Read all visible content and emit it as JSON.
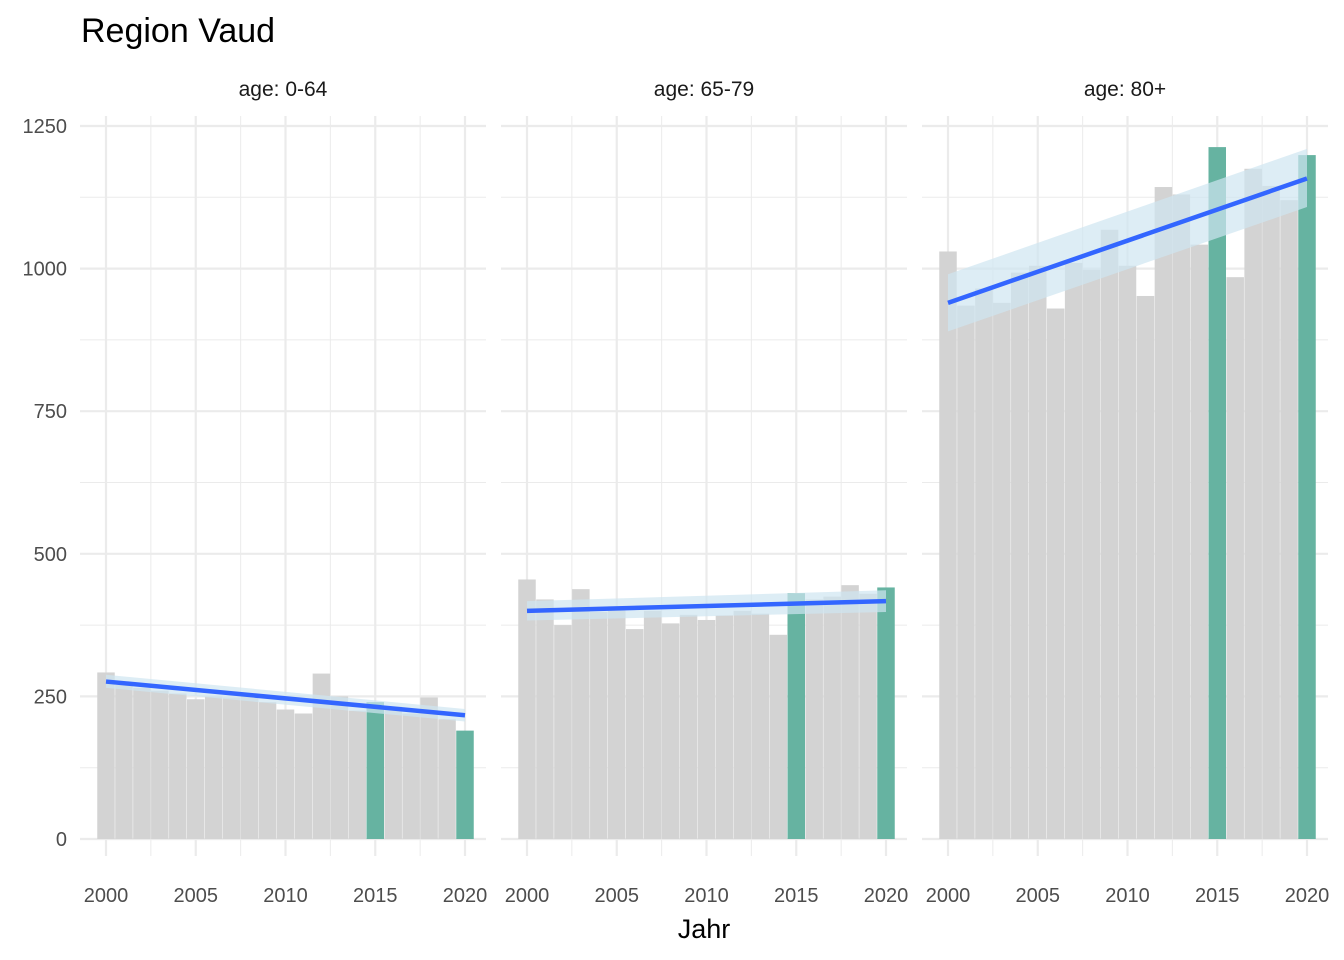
{
  "chart_data": {
    "type": "bar",
    "title": "Region Vaud",
    "xlabel": "Jahr",
    "ylabel": "",
    "ylim": [
      0,
      1250
    ],
    "xlim": [
      2000,
      2020
    ],
    "y_ticks": [
      0,
      250,
      500,
      750,
      1000,
      1250
    ],
    "x_ticks": [
      2000,
      2005,
      2010,
      2015,
      2020
    ],
    "grid": true,
    "colors": {
      "bar": "#d3d3d3",
      "highlight_bar": "#66b3a1",
      "trend_line": "#3366ff",
      "confidence_band": "#cfe6f1",
      "grid": "#ebebeb"
    },
    "highlight_years": [
      2015,
      2020
    ],
    "panels": [
      {
        "label": "age: 0-64",
        "years": [
          2000,
          2001,
          2002,
          2003,
          2004,
          2005,
          2006,
          2007,
          2008,
          2009,
          2010,
          2011,
          2012,
          2013,
          2014,
          2015,
          2016,
          2017,
          2018,
          2019,
          2020
        ],
        "values": [
          292,
          270,
          265,
          260,
          255,
          245,
          250,
          248,
          250,
          240,
          227,
          220,
          290,
          250,
          225,
          240,
          232,
          220,
          248,
          210,
          190
        ],
        "trend": {
          "start": [
            2000,
            276
          ],
          "end": [
            2020,
            217
          ],
          "ci_start": [
            265,
            288
          ],
          "ci_end": [
            206,
            228
          ]
        }
      },
      {
        "label": "age: 65-79",
        "years": [
          2000,
          2001,
          2002,
          2003,
          2004,
          2005,
          2006,
          2007,
          2008,
          2009,
          2010,
          2011,
          2012,
          2013,
          2014,
          2015,
          2016,
          2017,
          2018,
          2019,
          2020
        ],
        "values": [
          455,
          420,
          375,
          438,
          398,
          408,
          368,
          400,
          378,
          393,
          384,
          392,
          400,
          395,
          358,
          431,
          420,
          425,
          445,
          430,
          441
        ],
        "trend": {
          "start": [
            2000,
            400
          ],
          "end": [
            2020,
            417
          ],
          "ci_start": [
            383,
            417
          ],
          "ci_end": [
            398,
            436
          ]
        }
      },
      {
        "label": "age: 80+",
        "years": [
          2000,
          2001,
          2002,
          2003,
          2004,
          2005,
          2006,
          2007,
          2008,
          2009,
          2010,
          2011,
          2012,
          2013,
          2014,
          2015,
          2016,
          2017,
          2018,
          2019,
          2020
        ],
        "values": [
          1030,
          935,
          965,
          940,
          993,
          1005,
          930,
          1010,
          998,
          1068,
          1005,
          952,
          1143,
          1130,
          1042,
          1213,
          985,
          1175,
          1145,
          1120,
          1199
        ],
        "trend": {
          "start": [
            2000,
            940
          ],
          "end": [
            2020,
            1158
          ],
          "ci_start": [
            890,
            990
          ],
          "ci_end": [
            1108,
            1210
          ]
        }
      }
    ]
  }
}
